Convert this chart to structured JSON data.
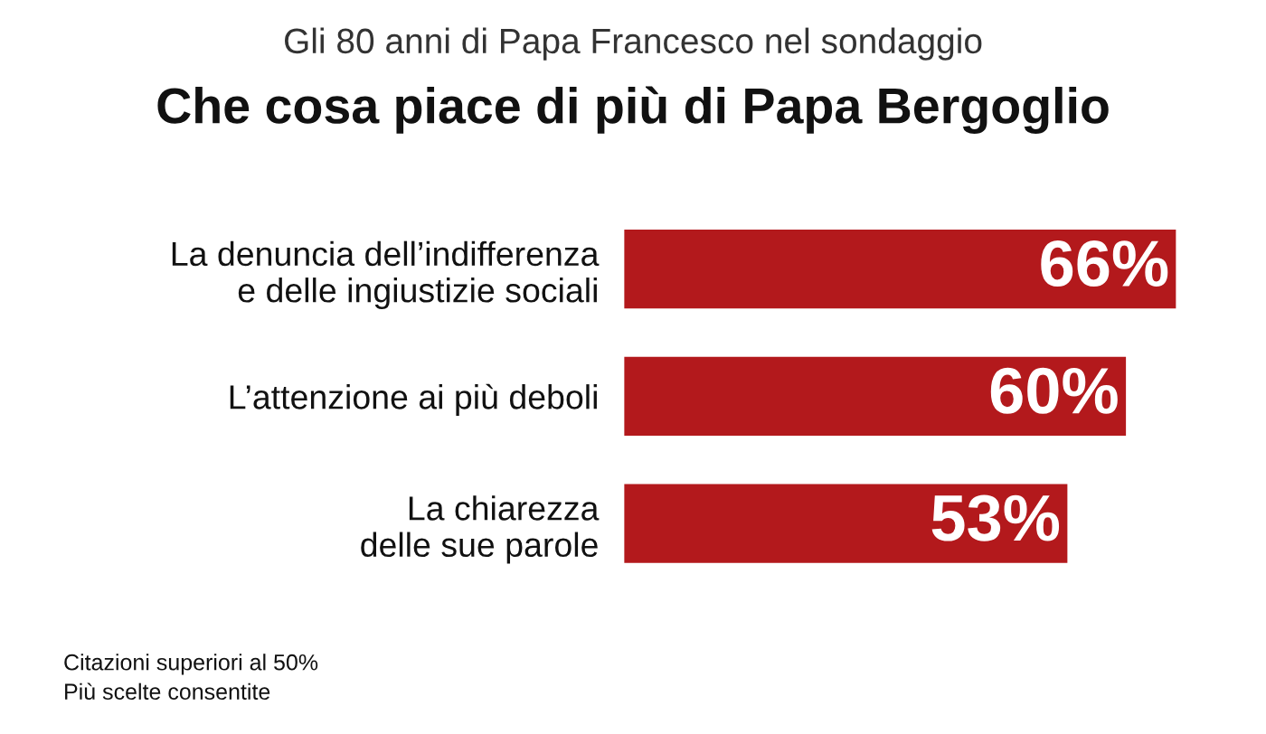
{
  "chart_data": {
    "type": "bar",
    "orientation": "horizontal",
    "subtitle": "Gli 80 anni di Papa Francesco nel sondaggio",
    "title": "Che cosa piace di più di Papa Bergoglio",
    "categories": [
      "La denuncia dell’indifferenza\ne delle ingiustizie sociali",
      "L’attenzione ai più deboli",
      "La chiarezza\ndelle sue parole"
    ],
    "values": [
      66,
      60,
      53
    ],
    "value_labels": [
      "66%",
      "60%",
      "53%"
    ],
    "color": "#b3191c",
    "xlim": [
      0,
      66
    ],
    "tick_labels": "y",
    "grid": false,
    "legend": false,
    "annotations": [
      "Citazioni superiori al 50%",
      "Più scelte consentite"
    ]
  }
}
